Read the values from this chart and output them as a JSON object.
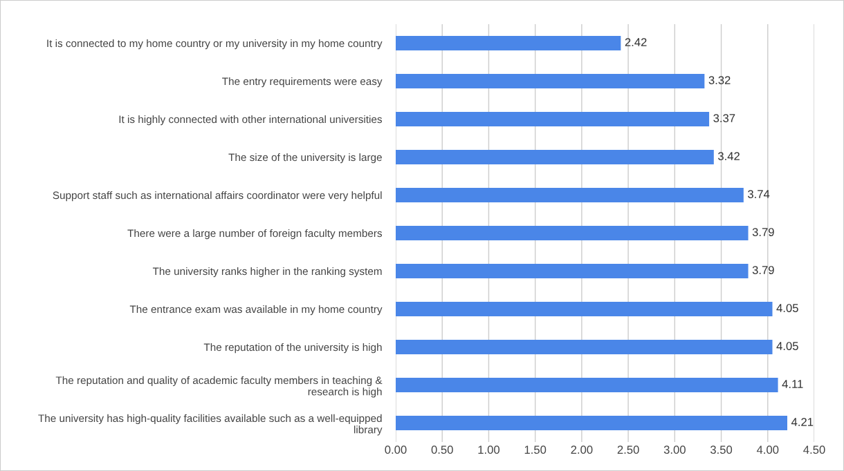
{
  "chart_data": {
    "type": "bar",
    "orientation": "horizontal",
    "categories": [
      "It is connected to my home country or my university in my home country",
      "The entry requirements were easy",
      "It is highly connected with other international universities",
      "The size of the university is large",
      "Support staff such as international affairs coordinator were very helpful",
      "There were a large number of foreign faculty members",
      "The university ranks higher in the ranking system",
      "The entrance exam was available in my home country",
      "The reputation of the university is high",
      "The reputation and quality of academic faculty members in teaching &\nresearch is high",
      "The university has high-quality facilities available such as a well-equipped\nlibrary"
    ],
    "values": [
      2.42,
      3.32,
      3.37,
      3.42,
      3.74,
      3.79,
      3.79,
      4.05,
      4.05,
      4.11,
      4.21
    ],
    "color": "#4a86e8",
    "xlim": [
      0,
      4.5
    ],
    "xticks": [
      {
        "value": 0,
        "label": "0.00"
      },
      {
        "value": 0.5,
        "label": "0.50"
      },
      {
        "value": 1,
        "label": "1.00"
      },
      {
        "value": 1.5,
        "label": "1.50"
      },
      {
        "value": 2,
        "label": "2.00"
      },
      {
        "value": 2.5,
        "label": "2.50"
      },
      {
        "value": 3,
        "label": "3.00"
      },
      {
        "value": 3.5,
        "label": "3.50"
      },
      {
        "value": 4,
        "label": "4.00"
      },
      {
        "value": 4.5,
        "label": "4.50"
      }
    ],
    "grid": "x",
    "data_labels": true,
    "legend": false
  }
}
